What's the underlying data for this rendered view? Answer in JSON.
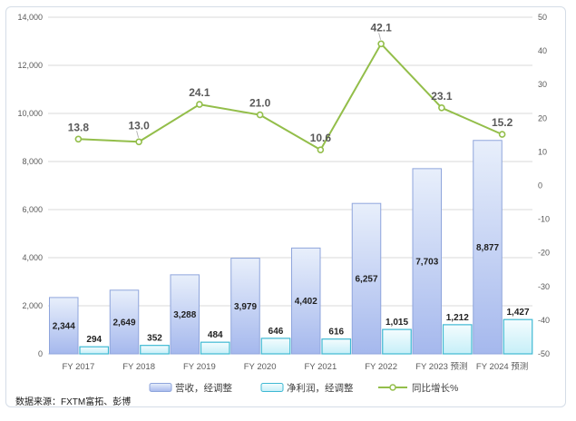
{
  "chart_data": {
    "type": "combo",
    "title": "",
    "categories": [
      "FY 2017",
      "FY 2018",
      "FY 2019",
      "FY 2020",
      "FY 2021",
      "FY 2022",
      "FY 2023 预测",
      "FY 2024 预测"
    ],
    "series": [
      {
        "name": "营收，经调整",
        "type": "bar",
        "axis": "left",
        "values": [
          2344,
          2649,
          3288,
          3979,
          4402,
          6257,
          7703,
          8877
        ],
        "labels": [
          "2,344",
          "2,649",
          "3,288",
          "3,979",
          "4,402",
          "6,257",
          "7,703",
          "8,877"
        ]
      },
      {
        "name": "净利润，经调整",
        "type": "bar",
        "axis": "left",
        "values": [
          294,
          352,
          484,
          646,
          616,
          1015,
          1212,
          1427
        ],
        "labels": [
          "294",
          "352",
          "484",
          "646",
          "616",
          "1,015",
          "1,212",
          "1,427"
        ]
      },
      {
        "name": "同比增长%",
        "type": "line",
        "axis": "right",
        "values": [
          13.8,
          13.0,
          24.1,
          21.0,
          10.6,
          42.1,
          23.1,
          15.2
        ],
        "labels": [
          "13.8",
          "13.0",
          "24.1",
          "21.0",
          "10.6",
          "42.1",
          "23.1",
          "15.2"
        ]
      }
    ],
    "left_axis": {
      "min": 0,
      "max": 14000,
      "step": 2000,
      "tick_labels": [
        "14,000",
        "12,000",
        "10,000",
        "8,000",
        "6,000",
        "4,000",
        "2,000",
        "0"
      ]
    },
    "right_axis": {
      "min": -50,
      "max": 50,
      "step": 10,
      "tick_labels": [
        "50",
        "40",
        "30",
        "20",
        "10",
        "0",
        "-10",
        "-20",
        "-30",
        "-40",
        "-50"
      ]
    },
    "grid": "horizontal",
    "legend_position": "bottom",
    "colors": {
      "revenue_fill_top": "#E8EFFB",
      "revenue_fill_bottom": "#A5B8ED",
      "revenue_border": "#8FA5DC",
      "profit_fill_top": "#F4FCFE",
      "profit_fill_bottom": "#C6EFF8",
      "profit_border": "#3FB9D3",
      "growth_line": "#93BE4A",
      "gridline": "#D9D9D9",
      "axis_text": "#595959",
      "value_label": "#1F1F1F",
      "frame_border": "#D5DDE7",
      "leader_line": "#AFAFAF"
    }
  },
  "source_note": "数据来源：FXTM富拓、彭博"
}
